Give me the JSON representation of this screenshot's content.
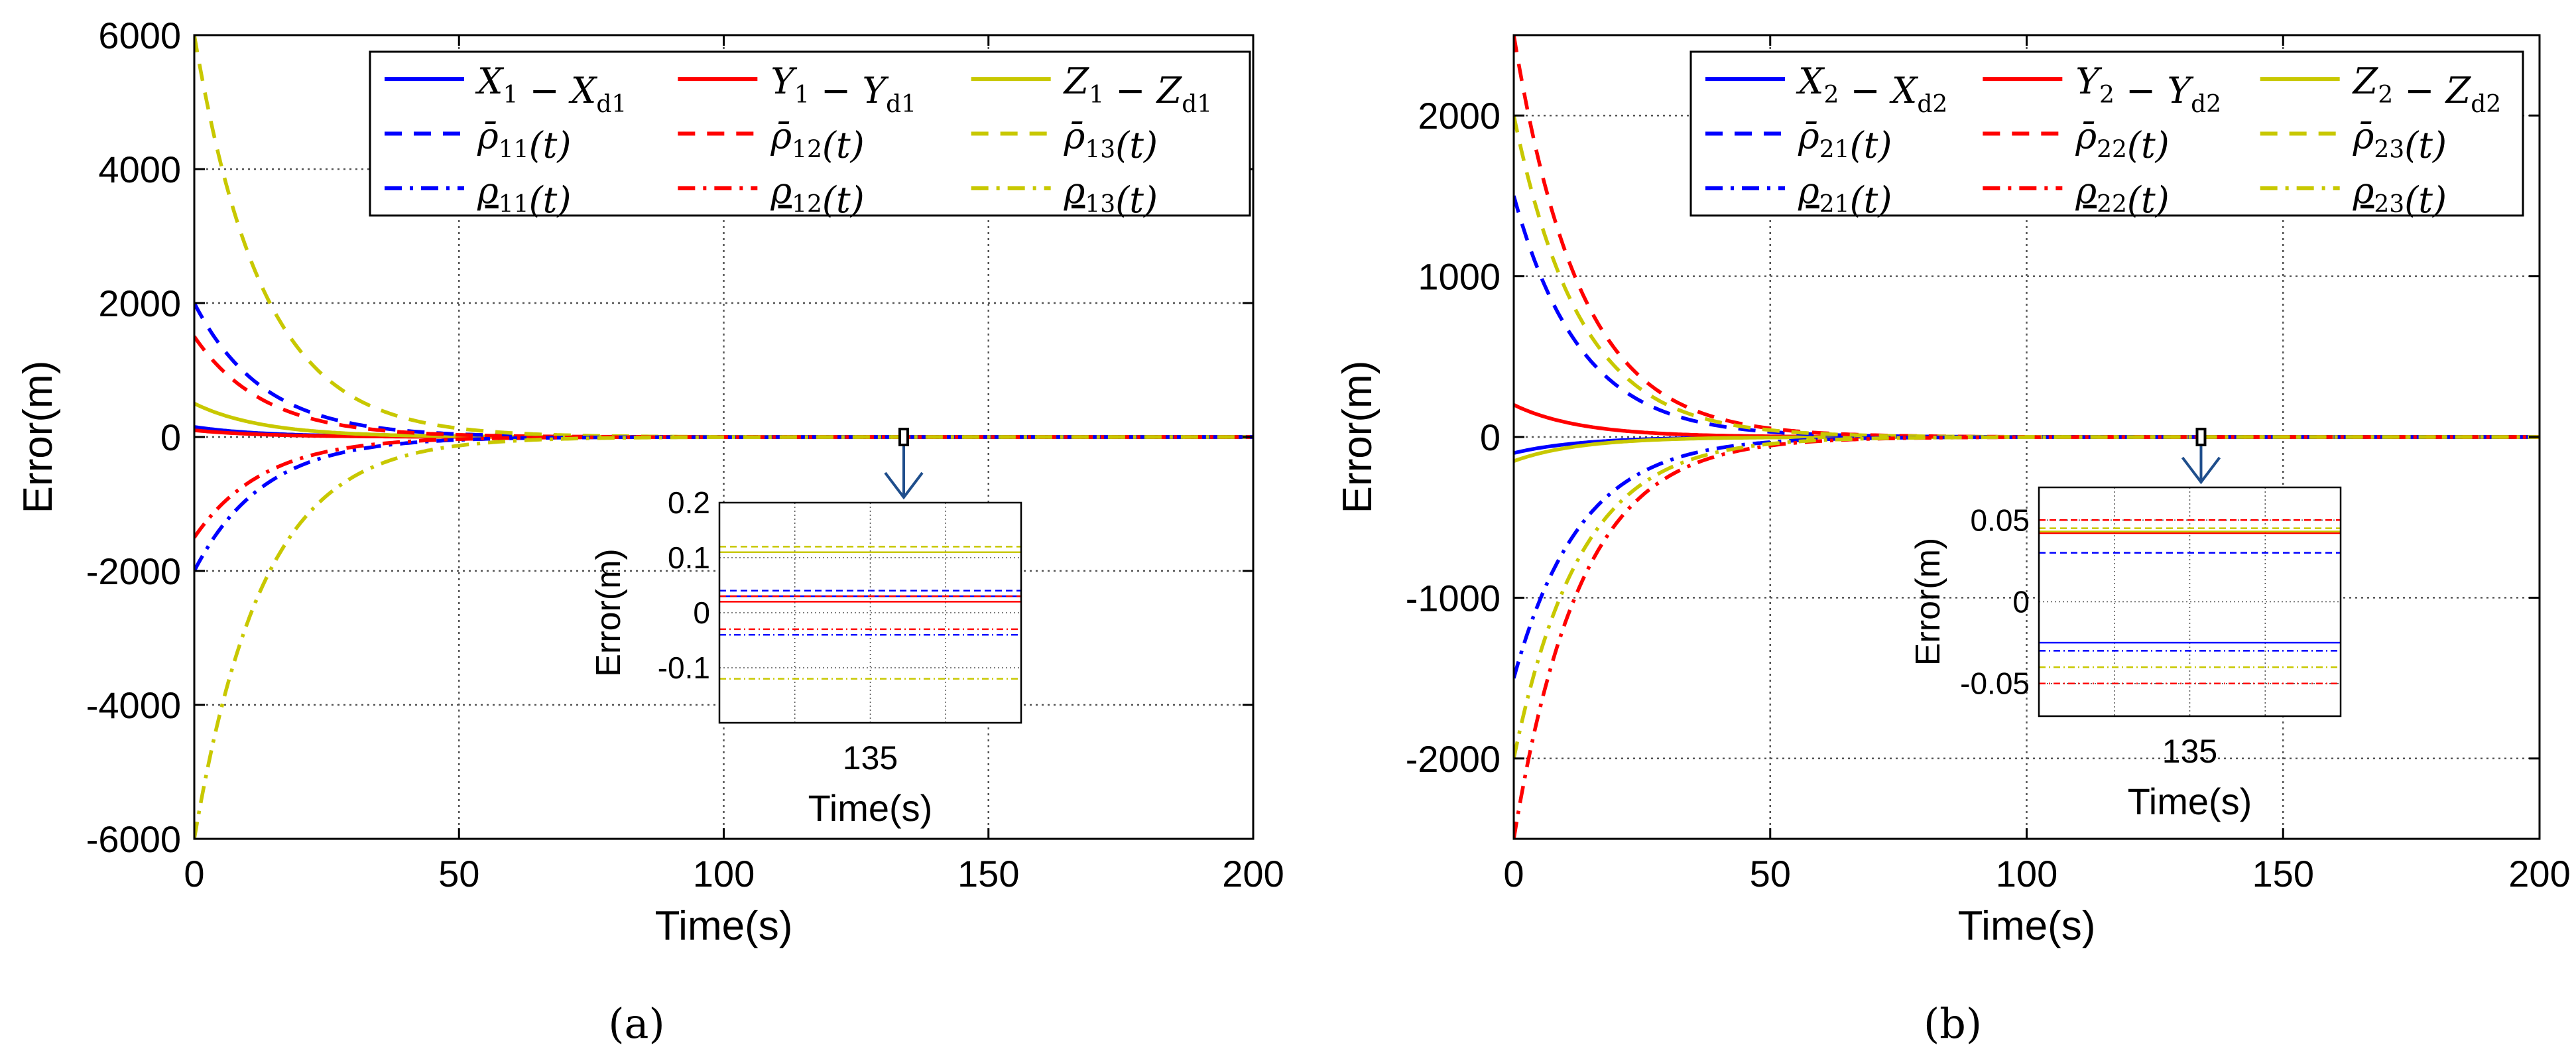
{
  "figure": {
    "label_a": "(a)",
    "label_b": "(b)"
  },
  "colors": {
    "x": "#0000ff",
    "y": "#ff0000",
    "z": "#c8c800",
    "grid": "#555555"
  },
  "chart_data": [
    {
      "id": "a",
      "type": "line",
      "title": "",
      "xlabel": "Time(s)",
      "ylabel": "Error(m)",
      "xlim": [
        0,
        200
      ],
      "ylim": [
        -6000,
        6000
      ],
      "xticks": [
        0,
        50,
        100,
        150,
        200
      ],
      "xtick_labels": [
        "0",
        "50",
        "100",
        "150",
        "200"
      ],
      "yticks": [
        -6000,
        -4000,
        -2000,
        0,
        2000,
        4000,
        6000
      ],
      "ytick_labels": [
        "-6000",
        "-4000",
        "-2000",
        "0",
        "2000",
        "4000",
        "6000"
      ],
      "grid": true,
      "legend_position": "top-right",
      "tau": 13,
      "series": [
        {
          "name": "X1 − Xd1",
          "legend": [
            [
              "X",
              "1"
            ],
            [
              " − X",
              "d1"
            ]
          ],
          "color": "x",
          "style": "solid",
          "start": 150,
          "end": 0.03
        },
        {
          "name": "Y1 − Yd1",
          "legend": [
            [
              "Y",
              "1"
            ],
            [
              " − Y",
              "d1"
            ]
          ],
          "color": "y",
          "style": "solid",
          "start": 100,
          "end": 0.02
        },
        {
          "name": "Z1 − Zd1",
          "legend": [
            [
              "Z",
              "1"
            ],
            [
              " − Z",
              "d1"
            ]
          ],
          "color": "z",
          "style": "solid",
          "start": 500,
          "end": 0.11
        },
        {
          "name": "ρ̄11(t)",
          "legend": [
            [
              "ρ̄",
              "11"
            ],
            [
              "(t)",
              ""
            ]
          ],
          "color": "x",
          "style": "dashed",
          "start": 2000,
          "end": 0.04
        },
        {
          "name": "ρ̄12(t)",
          "legend": [
            [
              "ρ̄",
              "12"
            ],
            [
              "(t)",
              ""
            ]
          ],
          "color": "y",
          "style": "dashed",
          "start": 1500,
          "end": 0.03
        },
        {
          "name": "ρ̄13(t)",
          "legend": [
            [
              "ρ̄",
              "13"
            ],
            [
              "(t)",
              ""
            ]
          ],
          "color": "z",
          "style": "dashed",
          "start": 6000,
          "end": 0.12
        },
        {
          "name": "ρ11(t)",
          "legend": [
            [
              "ρ",
              "11"
            ],
            [
              "(t)",
              ""
            ]
          ],
          "underline": true,
          "color": "x",
          "style": "dashdot",
          "start": -2000,
          "end": -0.04
        },
        {
          "name": "ρ12(t)",
          "legend": [
            [
              "ρ",
              "12"
            ],
            [
              "(t)",
              ""
            ]
          ],
          "underline": true,
          "color": "y",
          "style": "dashdot",
          "start": -1500,
          "end": -0.03
        },
        {
          "name": "ρ13(t)",
          "legend": [
            [
              "ρ",
              "13"
            ],
            [
              "(t)",
              ""
            ]
          ],
          "underline": true,
          "color": "z",
          "style": "dashdot",
          "start": -6000,
          "end": -0.12
        }
      ],
      "inset": {
        "xlabel": "Time(s)",
        "ylabel": "Error(m)",
        "xlim": [
          134.5,
          135.5
        ],
        "ylim": [
          -0.2,
          0.2
        ],
        "xticks": [
          135
        ],
        "xtick_labels": [
          "135"
        ],
        "yticks": [
          0.2,
          0.1,
          0,
          -0.1
        ],
        "ytick_labels": [
          "0.2",
          "0.1",
          "0",
          "-0.1"
        ],
        "zoom_center": [
          134,
          0
        ]
      }
    },
    {
      "id": "b",
      "type": "line",
      "title": "",
      "xlabel": "Time(s)",
      "ylabel": "Error(m)",
      "xlim": [
        0,
        200
      ],
      "ylim": [
        -2500,
        2500
      ],
      "xticks": [
        0,
        50,
        100,
        150,
        200
      ],
      "xtick_labels": [
        "0",
        "50",
        "100",
        "150",
        "200"
      ],
      "yticks": [
        -2000,
        -1000,
        0,
        1000,
        2000
      ],
      "ytick_labels": [
        "-2000",
        "-1000",
        "0",
        "1000",
        "2000"
      ],
      "grid": true,
      "legend_position": "top-right",
      "tau": 13,
      "series": [
        {
          "name": "X2 − Xd2",
          "legend": [
            [
              "X",
              "2"
            ],
            [
              " − X",
              "d2"
            ]
          ],
          "color": "x",
          "style": "solid",
          "start": -100,
          "end": -0.025
        },
        {
          "name": "Y2 − Yd2",
          "legend": [
            [
              "Y",
              "2"
            ],
            [
              " − Y",
              "d2"
            ]
          ],
          "color": "y",
          "style": "solid",
          "start": 200,
          "end": 0.042
        },
        {
          "name": "Z2 − Zd2",
          "legend": [
            [
              "Z",
              "2"
            ],
            [
              " − Z",
              "d2"
            ]
          ],
          "color": "z",
          "style": "solid",
          "start": -150,
          "end": 0.043
        },
        {
          "name": "ρ̄21(t)",
          "legend": [
            [
              "ρ̄",
              "21"
            ],
            [
              "(t)",
              ""
            ]
          ],
          "color": "x",
          "style": "dashed",
          "start": 1500,
          "end": 0.03
        },
        {
          "name": "ρ̄22(t)",
          "legend": [
            [
              "ρ̄",
              "22"
            ],
            [
              "(t)",
              ""
            ]
          ],
          "color": "y",
          "style": "dashed",
          "start": 2500,
          "end": 0.05
        },
        {
          "name": "ρ̄23(t)",
          "legend": [
            [
              "ρ̄",
              "23"
            ],
            [
              "(t)",
              ""
            ]
          ],
          "color": "z",
          "style": "dashed",
          "start": 2000,
          "end": 0.045
        },
        {
          "name": "ρ21(t)",
          "legend": [
            [
              "ρ",
              "21"
            ],
            [
              "(t)",
              ""
            ]
          ],
          "underline": true,
          "color": "x",
          "style": "dashdot",
          "start": -1500,
          "end": -0.03
        },
        {
          "name": "ρ22(t)",
          "legend": [
            [
              "ρ",
              "22"
            ],
            [
              "(t)",
              ""
            ]
          ],
          "underline": true,
          "color": "y",
          "style": "dashdot",
          "start": -2500,
          "end": -0.05
        },
        {
          "name": "ρ23(t)",
          "legend": [
            [
              "ρ",
              "23"
            ],
            [
              "(t)",
              ""
            ]
          ],
          "underline": true,
          "color": "z",
          "style": "dashdot",
          "start": -2000,
          "end": -0.04
        }
      ],
      "inset": {
        "xlabel": "Time(s)",
        "ylabel": "Error(m)",
        "xlim": [
          134.5,
          135.5
        ],
        "ylim": [
          -0.07,
          0.07
        ],
        "xticks": [
          135
        ],
        "xtick_labels": [
          "135"
        ],
        "yticks": [
          0.05,
          0,
          -0.05
        ],
        "ytick_labels": [
          "0.05",
          "0",
          "-0.05"
        ],
        "zoom_center": [
          134,
          0
        ]
      }
    }
  ]
}
